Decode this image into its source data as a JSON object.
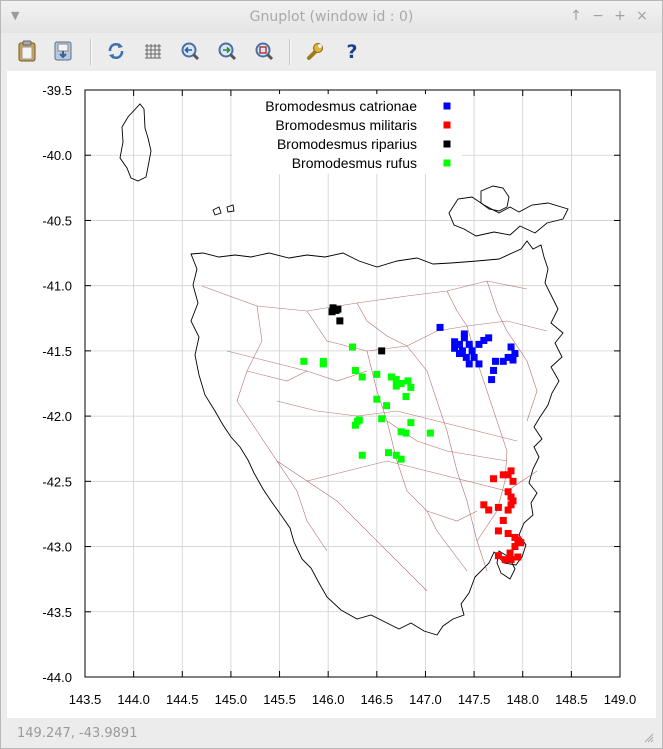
{
  "window": {
    "title": "Gnuplot (window id : 0)"
  },
  "statusbar": {
    "coords": "149.247, -43.9891"
  },
  "toolbar": {
    "buttons": [
      {
        "name": "copy-clipboard-button",
        "icon": "clipboard-icon"
      },
      {
        "name": "print-button",
        "icon": "printer-icon"
      },
      {
        "name": "replot-button",
        "icon": "refresh-icon"
      },
      {
        "name": "grid-button",
        "icon": "grid-icon"
      },
      {
        "name": "zoom-previous-button",
        "icon": "zoom-back-icon"
      },
      {
        "name": "zoom-next-button",
        "icon": "zoom-forward-icon"
      },
      {
        "name": "autoscale-button",
        "icon": "zoom-fit-icon"
      },
      {
        "name": "options-button",
        "icon": "wrench-icon"
      },
      {
        "name": "help-button",
        "icon": "help-icon"
      }
    ]
  },
  "chart_data": {
    "type": "scatter",
    "xlim": [
      143.5,
      149.0
    ],
    "ylim": [
      -44.0,
      -39.5
    ],
    "xticks": [
      "143.5",
      "144.0",
      "144.5",
      "145.0",
      "145.5",
      "146.0",
      "146.5",
      "147.0",
      "147.5",
      "148.0",
      "148.5",
      "149.0"
    ],
    "yticks": [
      "-39.5",
      "-40.0",
      "-40.5",
      "-41.0",
      "-41.5",
      "-42.0",
      "-42.5",
      "-43.0",
      "-43.5",
      "-44.0"
    ],
    "grid": true,
    "legend_position": "top-right",
    "series": [
      {
        "name": "Bromodesmus catrionae",
        "color": "#0000ff",
        "points": [
          [
            147.15,
            -41.32
          ],
          [
            147.3,
            -41.43
          ],
          [
            147.35,
            -41.45
          ],
          [
            147.4,
            -41.4
          ],
          [
            147.45,
            -41.45
          ],
          [
            147.38,
            -41.5
          ],
          [
            147.42,
            -41.55
          ],
          [
            147.48,
            -41.5
          ],
          [
            147.35,
            -41.52
          ],
          [
            147.3,
            -41.48
          ],
          [
            147.4,
            -41.37
          ],
          [
            147.55,
            -41.45
          ],
          [
            147.6,
            -41.42
          ],
          [
            147.65,
            -41.4
          ],
          [
            147.5,
            -41.55
          ],
          [
            147.45,
            -41.6
          ],
          [
            147.55,
            -41.6
          ],
          [
            147.7,
            -41.65
          ],
          [
            147.72,
            -41.58
          ],
          [
            147.68,
            -41.72
          ],
          [
            147.8,
            -41.58
          ],
          [
            147.85,
            -41.55
          ],
          [
            147.88,
            -41.47
          ],
          [
            147.92,
            -41.52
          ],
          [
            147.9,
            -41.57
          ]
        ]
      },
      {
        "name": "Bromodesmus militaris",
        "color": "#ff0000",
        "points": [
          [
            147.7,
            -42.48
          ],
          [
            147.8,
            -42.45
          ],
          [
            147.85,
            -42.45
          ],
          [
            147.88,
            -42.42
          ],
          [
            147.9,
            -42.5
          ],
          [
            147.85,
            -42.58
          ],
          [
            147.88,
            -42.62
          ],
          [
            147.9,
            -42.65
          ],
          [
            147.6,
            -42.68
          ],
          [
            147.65,
            -42.72
          ],
          [
            147.75,
            -42.7
          ],
          [
            147.85,
            -42.72
          ],
          [
            147.88,
            -42.68
          ],
          [
            147.8,
            -42.8
          ],
          [
            147.75,
            -42.88
          ],
          [
            147.85,
            -42.9
          ],
          [
            147.92,
            -42.93
          ],
          [
            147.95,
            -42.95
          ],
          [
            147.98,
            -42.97
          ],
          [
            147.92,
            -43.0
          ],
          [
            147.87,
            -43.05
          ],
          [
            147.75,
            -43.07
          ],
          [
            147.82,
            -43.1
          ],
          [
            147.88,
            -43.1
          ],
          [
            147.95,
            -43.08
          ]
        ]
      },
      {
        "name": "Bromodesmus riparius",
        "color": "#000000",
        "points": [
          [
            146.05,
            -41.17
          ],
          [
            146.08,
            -41.19
          ],
          [
            146.1,
            -41.18
          ],
          [
            146.04,
            -41.2
          ],
          [
            146.12,
            -41.27
          ],
          [
            146.55,
            -41.5
          ]
        ]
      },
      {
        "name": "Bromodesmus rufus",
        "color": "#00ff00",
        "points": [
          [
            145.75,
            -41.58
          ],
          [
            145.95,
            -41.58
          ],
          [
            145.95,
            -41.6
          ],
          [
            146.25,
            -41.47
          ],
          [
            146.28,
            -41.65
          ],
          [
            146.35,
            -41.7
          ],
          [
            146.5,
            -41.68
          ],
          [
            146.65,
            -41.7
          ],
          [
            146.7,
            -41.72
          ],
          [
            146.7,
            -41.77
          ],
          [
            146.75,
            -41.75
          ],
          [
            146.82,
            -41.73
          ],
          [
            146.85,
            -41.78
          ],
          [
            146.8,
            -41.85
          ],
          [
            146.5,
            -41.87
          ],
          [
            146.6,
            -41.92
          ],
          [
            146.55,
            -42.02
          ],
          [
            146.3,
            -42.04
          ],
          [
            146.28,
            -42.07
          ],
          [
            146.32,
            -42.03
          ],
          [
            146.85,
            -42.05
          ],
          [
            146.75,
            -42.12
          ],
          [
            146.8,
            -42.13
          ],
          [
            147.05,
            -42.13
          ],
          [
            146.62,
            -42.28
          ],
          [
            146.7,
            -42.3
          ],
          [
            146.75,
            -42.33
          ],
          [
            146.35,
            -42.3
          ]
        ]
      }
    ]
  }
}
